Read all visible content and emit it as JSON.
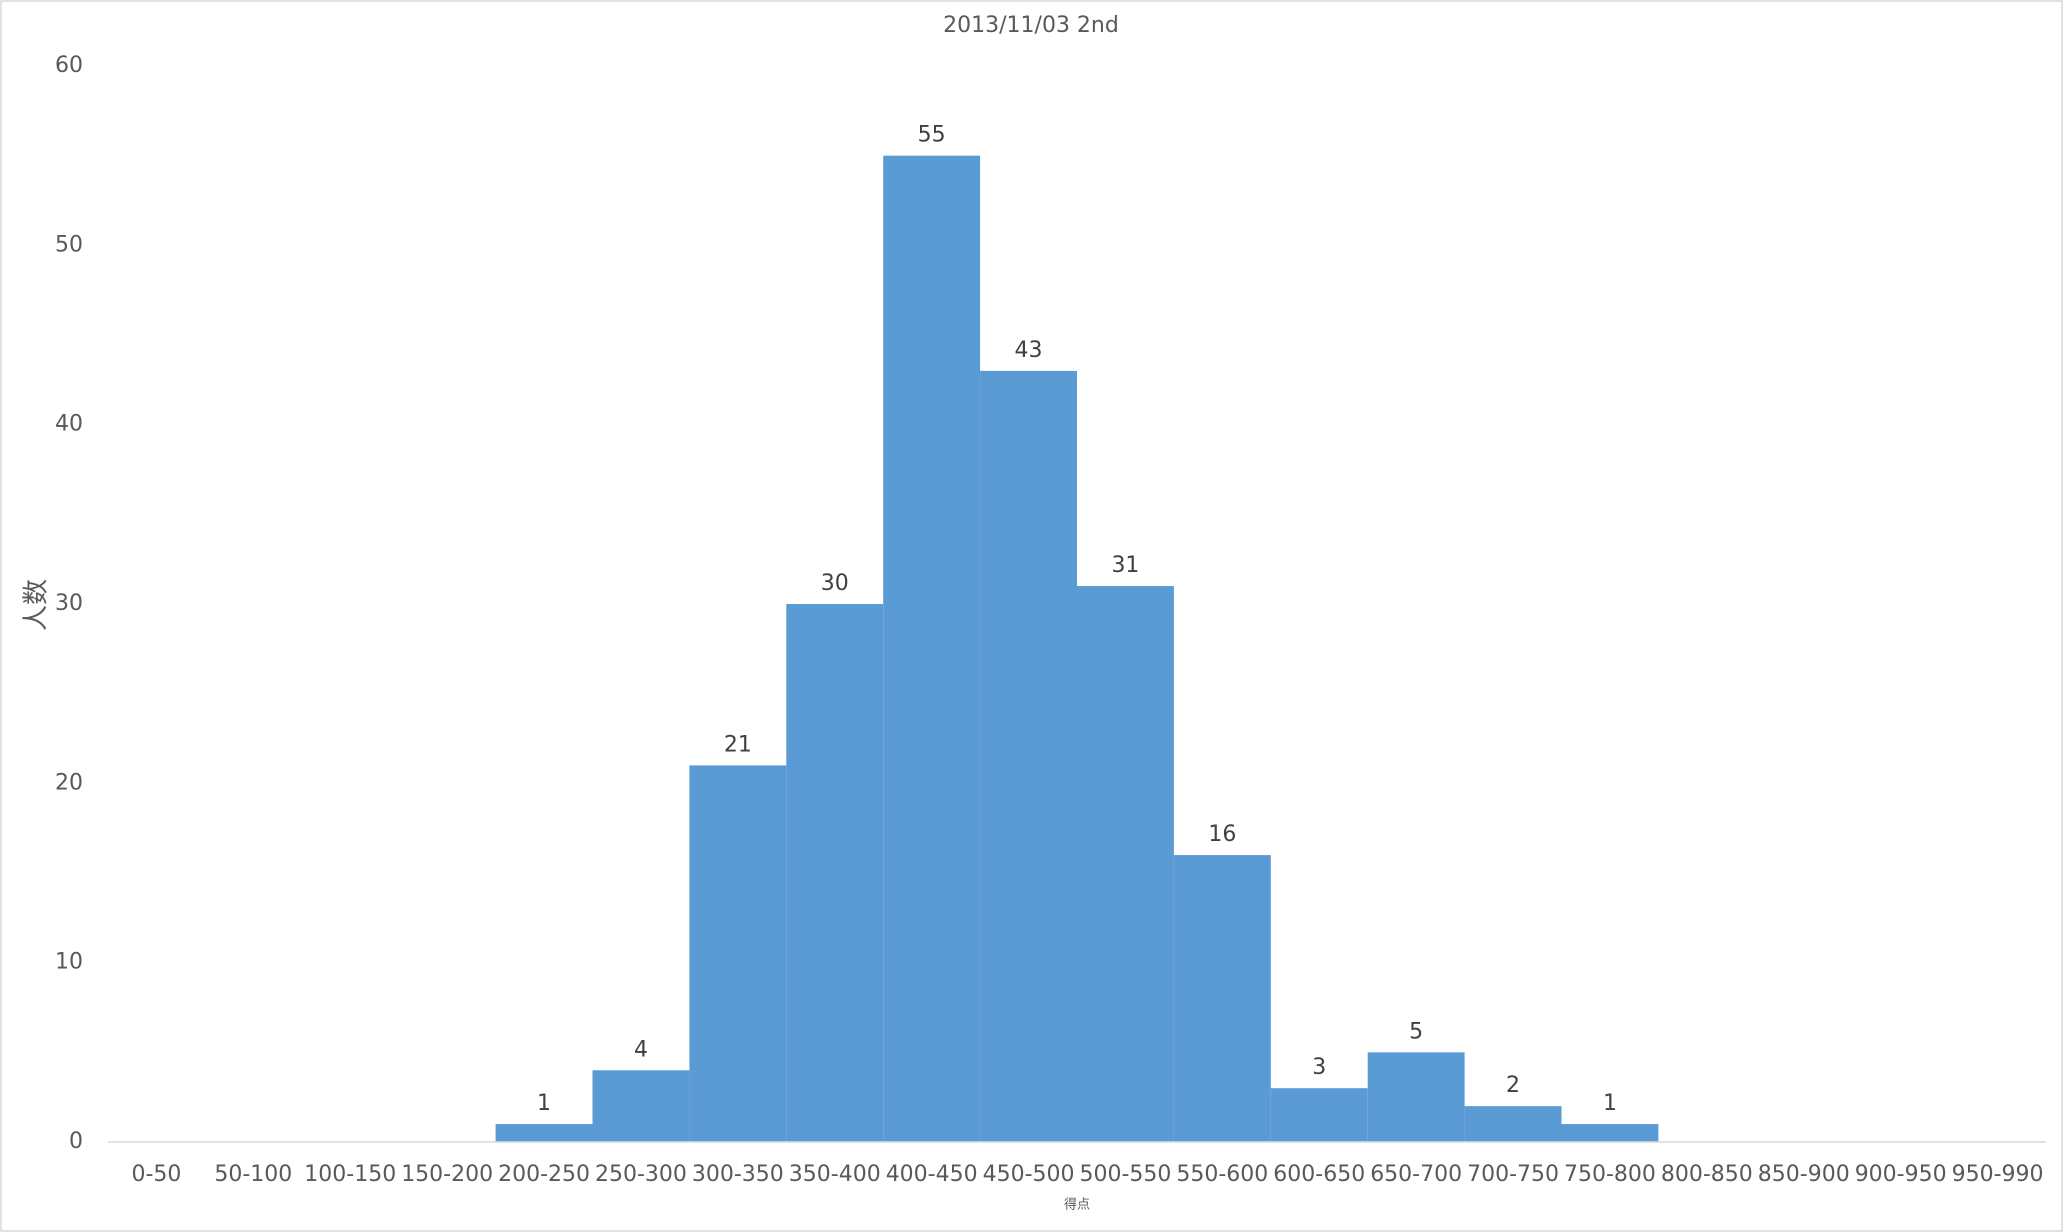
{
  "chart_data": {
    "type": "bar",
    "title": "2013/11/03 2nd",
    "x_label": "得点",
    "y_label": "人数",
    "categories": [
      "0-50",
      "50-100",
      "100-150",
      "150-200",
      "200-250",
      "250-300",
      "300-350",
      "350-400",
      "400-450",
      "450-500",
      "500-550",
      "550-600",
      "600-650",
      "650-700",
      "700-750",
      "750-800",
      "800-850",
      "850-900",
      "900-950",
      "950-990"
    ],
    "values": [
      0,
      0,
      0,
      0,
      1,
      4,
      21,
      30,
      55,
      43,
      31,
      16,
      3,
      5,
      2,
      1,
      0,
      0,
      0,
      0
    ],
    "color": "#5b9bd5",
    "ylim": [
      0,
      60
    ],
    "yticks": [
      0,
      10,
      20,
      30,
      40,
      50,
      60
    ],
    "grid": false
  }
}
